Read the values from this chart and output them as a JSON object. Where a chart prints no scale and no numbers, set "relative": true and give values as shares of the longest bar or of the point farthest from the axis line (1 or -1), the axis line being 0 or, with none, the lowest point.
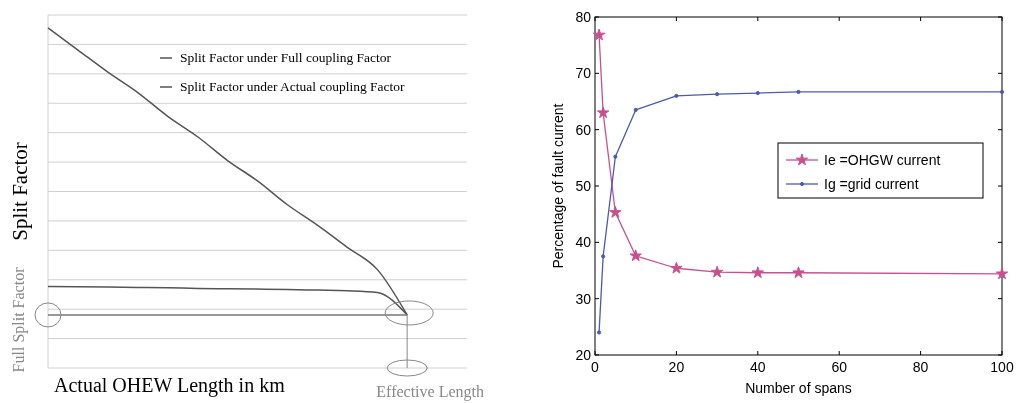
{
  "chart_data": [
    {
      "type": "line",
      "relative": true,
      "xlabel": "Actual OHEW Length in km",
      "ylabel": "Split Factor",
      "annotations": [
        "Full Split Factor",
        "Effective Length"
      ],
      "grid": "y",
      "legend": "top right",
      "categories": [
        null,
        null,
        null,
        null,
        null,
        null,
        null,
        null,
        null,
        null,
        null,
        null,
        null,
        null,
        null
      ],
      "series": [
        {
          "name": "Split Factor under Full coupling Factor",
          "color": "#555555",
          "values": [
            1.0,
            0.935,
            0.87,
            0.81,
            0.74,
            0.68,
            0.61,
            0.55,
            0.48,
            0.42,
            0.355,
            0.29,
            0.156,
            null,
            null
          ]
        },
        {
          "name": "Split Factor under Actual coupling Factor",
          "color": "#555555",
          "values": [
            0.24,
            0.239,
            0.238,
            0.237,
            0.236,
            0.234,
            0.233,
            0.232,
            0.231,
            0.229,
            0.227,
            0.222,
            0.156,
            null,
            null
          ]
        },
        {
          "color": "#777777",
          "values": [
            0.156,
            0.156,
            0.156,
            0.156,
            0.156,
            0.156,
            0.156,
            0.156,
            0.156,
            0.156,
            0.156,
            0.156,
            0.156,
            null,
            null
          ]
        }
      ]
    },
    {
      "type": "line",
      "xlabel": "Number of spans",
      "ylabel": "Percentage of fault current",
      "xlim": [
        0,
        100
      ],
      "ylim": [
        20,
        80
      ],
      "xticks": [
        0,
        20,
        40,
        60,
        80,
        100
      ],
      "yticks": [
        20,
        30,
        40,
        50,
        60,
        70,
        80
      ],
      "grid": false,
      "legend": "right",
      "x": [
        1,
        2,
        5,
        10,
        20,
        30,
        40,
        50,
        100
      ],
      "series": [
        {
          "name": "Ie =OHGW current",
          "color": "#c8508f",
          "marker": "star",
          "values": [
            76.8,
            63,
            45.3,
            37.6,
            35.4,
            34.7,
            34.6,
            34.6,
            34.4
          ]
        },
        {
          "name": "Ig =grid current",
          "color": "#4a5bb0",
          "marker": "circle",
          "values": [
            24,
            37.5,
            55.2,
            63.5,
            66,
            66.3,
            66.5,
            66.7,
            66.7
          ]
        }
      ]
    }
  ]
}
